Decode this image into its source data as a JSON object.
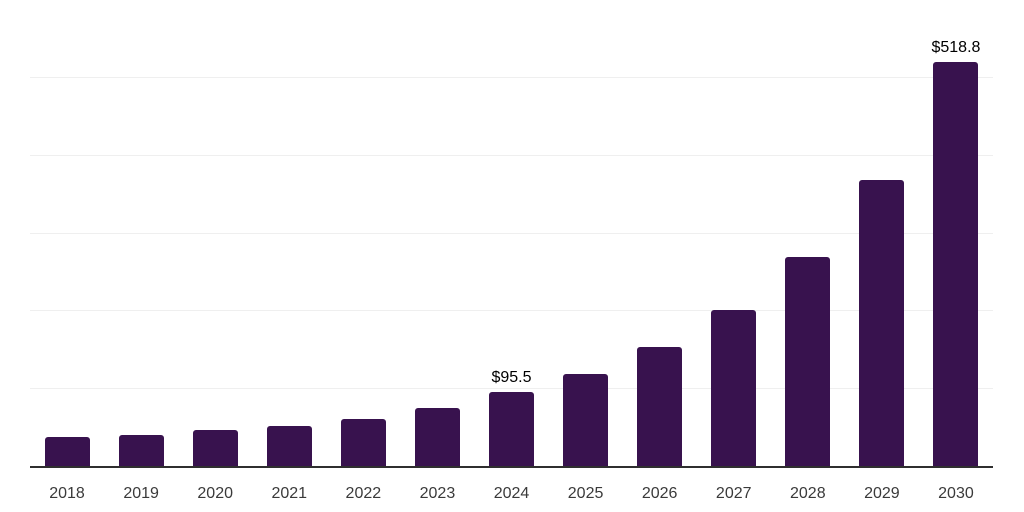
{
  "chart_data": {
    "type": "bar",
    "categories": [
      "2018",
      "2019",
      "2020",
      "2021",
      "2022",
      "2023",
      "2024",
      "2025",
      "2026",
      "2027",
      "2028",
      "2029",
      "2030"
    ],
    "values": [
      37.5,
      40,
      46,
      51.5,
      60.5,
      74.5,
      95.5,
      118.5,
      153,
      201,
      269,
      368,
      518.8
    ],
    "data_labels": [
      null,
      null,
      null,
      null,
      null,
      null,
      "$95.5",
      null,
      null,
      null,
      null,
      null,
      "$518.8"
    ],
    "ylim": [
      0,
      600
    ],
    "gridline_interval": 100,
    "grid": true,
    "legend": false,
    "bar_color": "#38124E",
    "axis_line_color": "#2f2f2f",
    "gridline_color": "#efefef",
    "data_label_color": "#000000",
    "tick_label_color": "#3a3a3a"
  }
}
